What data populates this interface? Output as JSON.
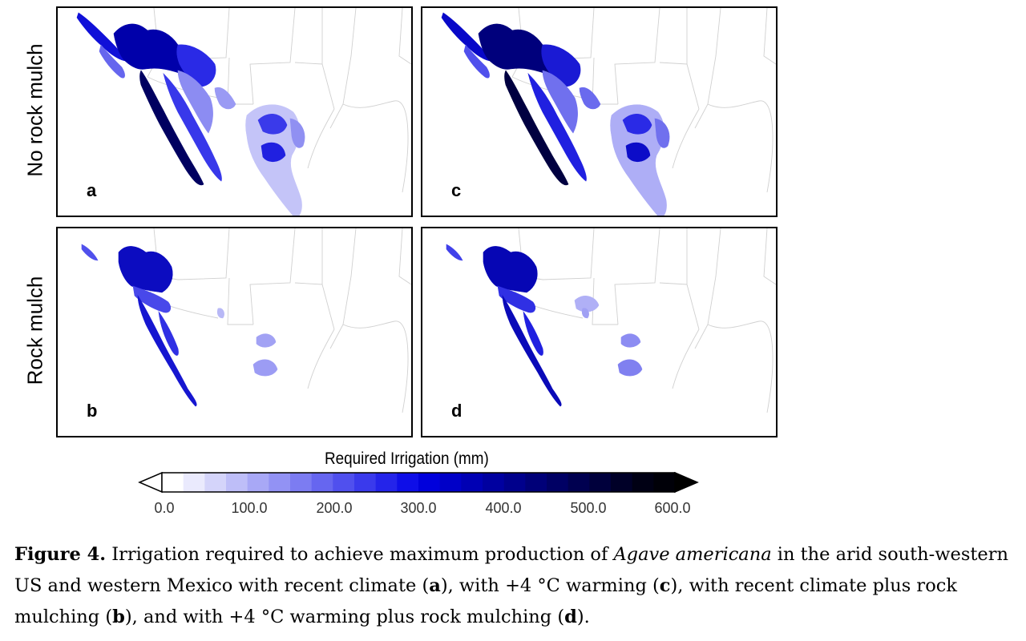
{
  "row_labels": {
    "top": "No rock mulch",
    "bottom": "Rock mulch"
  },
  "panels": [
    {
      "letter": "a",
      "warming": false,
      "mulch": false
    },
    {
      "letter": "c",
      "warming": true,
      "mulch": false
    },
    {
      "letter": "b",
      "warming": false,
      "mulch": true
    },
    {
      "letter": "d",
      "warming": true,
      "mulch": true
    }
  ],
  "colorbar": {
    "title": "Required Irrigation (mm)",
    "ticks": [
      "0.0",
      "100.0",
      "200.0",
      "300.0",
      "400.0",
      "500.0",
      "600.0"
    ],
    "colors": [
      "#ffffff",
      "#eaeafd",
      "#d4d4fa",
      "#bebef8",
      "#a8a8f6",
      "#9292f4",
      "#7c7cf2",
      "#6666f0",
      "#5050ee",
      "#3a3aec",
      "#2424ea",
      "#0e0ee8",
      "#0000dc",
      "#0000c8",
      "#0000b4",
      "#0000a0",
      "#00008c",
      "#000078",
      "#000064",
      "#000050",
      "#00003c",
      "#000028",
      "#000014",
      "#000008"
    ],
    "extend_min_color": "#ffffff",
    "extend_max_color": "#000000"
  },
  "caption": {
    "label": "Figure 4.",
    "text_1": " Irrigation required to achieve maximum production of ",
    "species": "Agave americana",
    "text_2": " in the arid south-western US and western Mexico with recent climate (",
    "l_a": "a",
    "text_3": "), with +4 °C warming (",
    "l_c": "c",
    "text_4": "), with recent climate plus rock mulching (",
    "l_b": "b",
    "text_5": "), and with +4 °C warming plus rock mulching (",
    "l_d": "d",
    "text_6": ")."
  }
}
